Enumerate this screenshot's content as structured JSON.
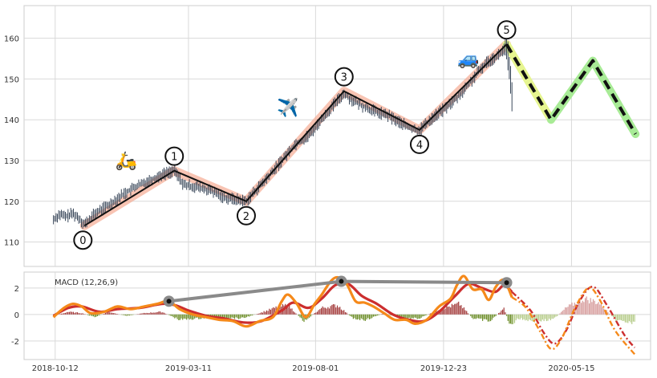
{
  "chart_data": [
    {
      "type": "line",
      "subtype": "candlestick-with-elliott-wave-overlay",
      "title": "",
      "xlabel": "",
      "ylabel": "",
      "ylim": [
        104,
        168
      ],
      "yticks": [
        110,
        120,
        130,
        140,
        150,
        160
      ],
      "x_tick_labels": [
        "2018-10-12",
        "2019-03-11",
        "2019-08-01",
        "2019-12-23",
        "2020-05-15"
      ],
      "x_tick_days": [
        0,
        150,
        293,
        437,
        581
      ],
      "xlim_days": [
        -35,
        670
      ],
      "grid": true,
      "price_path": [
        {
          "day": -2,
          "value": 115.5
        },
        {
          "day": 5,
          "value": 116.8
        },
        {
          "day": 12,
          "value": 116.2
        },
        {
          "day": 20,
          "value": 117.0
        },
        {
          "day": 27,
          "value": 115.8
        },
        {
          "day": 33,
          "value": 114.3
        },
        {
          "day": 45,
          "value": 117.0
        },
        {
          "day": 60,
          "value": 119.0
        },
        {
          "day": 75,
          "value": 121.5
        },
        {
          "day": 90,
          "value": 123.5
        },
        {
          "day": 105,
          "value": 125.0
        },
        {
          "day": 120,
          "value": 126.5
        },
        {
          "day": 134,
          "value": 127.5
        },
        {
          "day": 145,
          "value": 124.0
        },
        {
          "day": 160,
          "value": 123.5
        },
        {
          "day": 175,
          "value": 122.5
        },
        {
          "day": 190,
          "value": 121.0
        },
        {
          "day": 200,
          "value": 120.5
        },
        {
          "day": 215,
          "value": 120.0
        },
        {
          "day": 225,
          "value": 122.5
        },
        {
          "day": 240,
          "value": 126.0
        },
        {
          "day": 255,
          "value": 130.0
        },
        {
          "day": 270,
          "value": 134.0
        },
        {
          "day": 285,
          "value": 136.0
        },
        {
          "day": 300,
          "value": 140.0
        },
        {
          "day": 315,
          "value": 144.0
        },
        {
          "day": 325,
          "value": 146.5
        },
        {
          "day": 333,
          "value": 145.0
        },
        {
          "day": 345,
          "value": 143.5
        },
        {
          "day": 360,
          "value": 142.0
        },
        {
          "day": 375,
          "value": 141.0
        },
        {
          "day": 390,
          "value": 139.0
        },
        {
          "day": 405,
          "value": 137.5
        },
        {
          "day": 410,
          "value": 137.5
        },
        {
          "day": 425,
          "value": 140.5
        },
        {
          "day": 440,
          "value": 143.0
        },
        {
          "day": 455,
          "value": 146.0
        },
        {
          "day": 470,
          "value": 150.0
        },
        {
          "day": 485,
          "value": 154.0
        },
        {
          "day": 500,
          "value": 156.0
        },
        {
          "day": 508,
          "value": 158.0
        },
        {
          "day": 512,
          "value": 150.0
        },
        {
          "day": 515,
          "value": 143.0
        }
      ],
      "wave_points": [
        {
          "label": "0",
          "day": 33,
          "value": 114.0,
          "position": "below"
        },
        {
          "label": "1",
          "day": 134,
          "value": 127.5,
          "position": "above"
        },
        {
          "label": "2",
          "day": 215,
          "value": 120.0,
          "position": "below"
        },
        {
          "label": "3",
          "day": 325,
          "value": 147.0,
          "position": "above"
        },
        {
          "label": "4",
          "day": 410,
          "value": 137.5,
          "position": "below"
        },
        {
          "label": "5",
          "day": 508,
          "value": 158.5,
          "position": "above"
        }
      ],
      "forecast_path": [
        {
          "day": 508,
          "value": 158.5
        },
        {
          "day": 558,
          "value": 140.0
        },
        {
          "day": 605,
          "value": 154.5
        },
        {
          "day": 653,
          "value": 136.5
        }
      ],
      "annotations": [
        {
          "icon": "scooter-icon",
          "glyph": "🛵",
          "day": 80,
          "value": 128.5
        },
        {
          "icon": "airplane-icon",
          "glyph": "✈️",
          "day": 262,
          "value": 141.5
        },
        {
          "icon": "car-icon",
          "glyph": "🚙",
          "day": 465,
          "value": 153.5
        }
      ],
      "colors": {
        "candle": "#3c4a5c",
        "wave_band": "#f5a58a",
        "wave_line": "#111111",
        "forecast_band_1": "#e6f590",
        "forecast_band_2": "#a8eb96",
        "forecast_dash": "#111111",
        "grid": "#d9d9d9",
        "axes_edge": "#cccccc"
      }
    },
    {
      "type": "line",
      "subtype": "macd-indicator",
      "indicator_label": "MACD (12,26,9)",
      "ylim": [
        -3.4,
        3.2
      ],
      "yticks": [
        -2,
        0,
        2
      ],
      "grid": true,
      "macd_line": [
        {
          "day": -2,
          "value": -0.2
        },
        {
          "day": 10,
          "value": 0.5
        },
        {
          "day": 20,
          "value": 0.8
        },
        {
          "day": 30,
          "value": 0.6
        },
        {
          "day": 40,
          "value": 0.1
        },
        {
          "day": 55,
          "value": 0.2
        },
        {
          "day": 70,
          "value": 0.6
        },
        {
          "day": 85,
          "value": 0.4
        },
        {
          "day": 100,
          "value": 0.6
        },
        {
          "day": 115,
          "value": 0.8
        },
        {
          "day": 128,
          "value": 1.0
        },
        {
          "day": 140,
          "value": 0.4
        },
        {
          "day": 155,
          "value": 0.0
        },
        {
          "day": 170,
          "value": -0.2
        },
        {
          "day": 185,
          "value": -0.4
        },
        {
          "day": 200,
          "value": -0.5
        },
        {
          "day": 215,
          "value": -0.9
        },
        {
          "day": 230,
          "value": -0.5
        },
        {
          "day": 245,
          "value": -0.2
        },
        {
          "day": 255,
          "value": 1.0
        },
        {
          "day": 262,
          "value": 1.5
        },
        {
          "day": 272,
          "value": 0.8
        },
        {
          "day": 282,
          "value": -0.2
        },
        {
          "day": 292,
          "value": 0.8
        },
        {
          "day": 300,
          "value": 1.5
        },
        {
          "day": 310,
          "value": 2.5
        },
        {
          "day": 318,
          "value": 2.8
        },
        {
          "day": 328,
          "value": 2.3
        },
        {
          "day": 338,
          "value": 1.0
        },
        {
          "day": 348,
          "value": 0.9
        },
        {
          "day": 358,
          "value": 0.6
        },
        {
          "day": 370,
          "value": 0.1
        },
        {
          "day": 382,
          "value": -0.4
        },
        {
          "day": 395,
          "value": -0.4
        },
        {
          "day": 405,
          "value": -0.7
        },
        {
          "day": 418,
          "value": -0.4
        },
        {
          "day": 432,
          "value": 0.6
        },
        {
          "day": 445,
          "value": 1.2
        },
        {
          "day": 452,
          "value": 2.2
        },
        {
          "day": 460,
          "value": 2.9
        },
        {
          "day": 470,
          "value": 1.9
        },
        {
          "day": 480,
          "value": 1.9
        },
        {
          "day": 488,
          "value": 1.1
        },
        {
          "day": 496,
          "value": 2.1
        },
        {
          "day": 505,
          "value": 2.6
        },
        {
          "day": 514,
          "value": 1.3
        }
      ],
      "signal_line": [
        {
          "day": -2,
          "value": -0.1
        },
        {
          "day": 15,
          "value": 0.5
        },
        {
          "day": 30,
          "value": 0.6
        },
        {
          "day": 50,
          "value": 0.2
        },
        {
          "day": 70,
          "value": 0.4
        },
        {
          "day": 95,
          "value": 0.5
        },
        {
          "day": 120,
          "value": 0.8
        },
        {
          "day": 135,
          "value": 0.7
        },
        {
          "day": 150,
          "value": 0.3
        },
        {
          "day": 170,
          "value": -0.1
        },
        {
          "day": 190,
          "value": -0.3
        },
        {
          "day": 212,
          "value": -0.6
        },
        {
          "day": 232,
          "value": -0.5
        },
        {
          "day": 255,
          "value": 0.3
        },
        {
          "day": 268,
          "value": 0.9
        },
        {
          "day": 285,
          "value": 0.5
        },
        {
          "day": 300,
          "value": 1.2
        },
        {
          "day": 315,
          "value": 2.2
        },
        {
          "day": 330,
          "value": 2.3
        },
        {
          "day": 345,
          "value": 1.4
        },
        {
          "day": 362,
          "value": 0.8
        },
        {
          "day": 380,
          "value": 0.0
        },
        {
          "day": 398,
          "value": -0.4
        },
        {
          "day": 415,
          "value": -0.5
        },
        {
          "day": 432,
          "value": 0.2
        },
        {
          "day": 450,
          "value": 1.4
        },
        {
          "day": 465,
          "value": 2.3
        },
        {
          "day": 480,
          "value": 2.0
        },
        {
          "day": 495,
          "value": 1.7
        },
        {
          "day": 505,
          "value": 2.2
        },
        {
          "day": 514,
          "value": 1.7
        }
      ],
      "forecast_macd": [
        {
          "day": 514,
          "value": 1.3
        },
        {
          "day": 530,
          "value": 0.5
        },
        {
          "day": 545,
          "value": -1.2
        },
        {
          "day": 558,
          "value": -2.6
        },
        {
          "day": 570,
          "value": -1.8
        },
        {
          "day": 585,
          "value": 0.5
        },
        {
          "day": 600,
          "value": 2.0
        },
        {
          "day": 612,
          "value": 1.2
        },
        {
          "day": 630,
          "value": -1.2
        },
        {
          "day": 652,
          "value": -3.0
        }
      ],
      "forecast_signal": [
        {
          "day": 514,
          "value": 1.7
        },
        {
          "day": 535,
          "value": 0.3
        },
        {
          "day": 550,
          "value": -1.4
        },
        {
          "day": 562,
          "value": -2.2
        },
        {
          "day": 575,
          "value": -1.2
        },
        {
          "day": 590,
          "value": 1.0
        },
        {
          "day": 605,
          "value": 2.1
        },
        {
          "day": 620,
          "value": 0.8
        },
        {
          "day": 640,
          "value": -1.5
        },
        {
          "day": 652,
          "value": -2.5
        }
      ],
      "divergence_line": [
        {
          "day": 128,
          "value": 1.0
        },
        {
          "day": 322,
          "value": 2.5
        },
        {
          "day": 508,
          "value": 2.4
        }
      ],
      "histogram_envelope": [
        {
          "day": -2,
          "value": -0.1
        },
        {
          "day": 15,
          "value": 0.2
        },
        {
          "day": 30,
          "value": 0.1
        },
        {
          "day": 45,
          "value": -0.2
        },
        {
          "day": 60,
          "value": 0.2
        },
        {
          "day": 80,
          "value": -0.1
        },
        {
          "day": 100,
          "value": 0.1
        },
        {
          "day": 120,
          "value": 0.2
        },
        {
          "day": 140,
          "value": -0.4
        },
        {
          "day": 160,
          "value": -0.3
        },
        {
          "day": 185,
          "value": -0.2
        },
        {
          "day": 210,
          "value": -0.3
        },
        {
          "day": 230,
          "value": 0.1
        },
        {
          "day": 252,
          "value": 0.6
        },
        {
          "day": 262,
          "value": 0.7
        },
        {
          "day": 280,
          "value": -0.5
        },
        {
          "day": 300,
          "value": 0.5
        },
        {
          "day": 318,
          "value": 0.7
        },
        {
          "day": 335,
          "value": -0.3
        },
        {
          "day": 350,
          "value": -0.4
        },
        {
          "day": 370,
          "value": 0.1
        },
        {
          "day": 390,
          "value": -0.3
        },
        {
          "day": 410,
          "value": -0.3
        },
        {
          "day": 432,
          "value": 0.4
        },
        {
          "day": 455,
          "value": 0.8
        },
        {
          "day": 470,
          "value": -0.3
        },
        {
          "day": 490,
          "value": -0.5
        },
        {
          "day": 505,
          "value": 0.5
        },
        {
          "day": 512,
          "value": -0.9
        },
        {
          "day": 520,
          "value": -0.3
        },
        {
          "day": 540,
          "value": -0.5
        },
        {
          "day": 560,
          "value": -0.4
        },
        {
          "day": 575,
          "value": 0.5
        },
        {
          "day": 595,
          "value": 1.2
        },
        {
          "day": 612,
          "value": 0.9
        },
        {
          "day": 630,
          "value": -0.4
        },
        {
          "day": 652,
          "value": -0.7
        }
      ],
      "colors": {
        "macd": "#f5891a",
        "signal": "#cc2e2e",
        "hist_positive": "#a33b3b",
        "hist_negative": "#6e8f2a",
        "hist_forecast_positive": "#d69a9a",
        "hist_forecast_negative": "#b6cc8a",
        "divergence": "#8a8a8a"
      }
    }
  ]
}
